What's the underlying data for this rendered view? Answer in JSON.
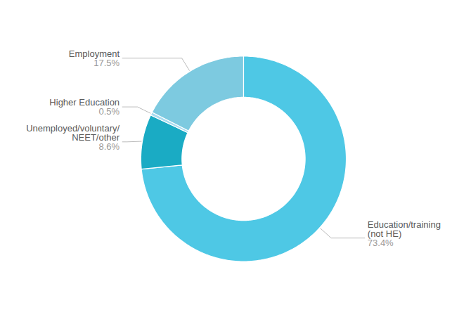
{
  "chart_data": {
    "type": "donut",
    "categories": [
      "Education/training\n(not HE)",
      "Unemployed/voluntary/\nNEET/other",
      "Higher Education",
      "Employment"
    ],
    "values": [
      73.4,
      8.6,
      0.5,
      17.5
    ],
    "value_labels": [
      "73.4%",
      "8.6%",
      "0.5%",
      "17.5%"
    ],
    "colors": [
      "#4EC8E5",
      "#1AABC4",
      "#A8DCF0",
      "#7DCAE0"
    ],
    "data_labels": true
  }
}
